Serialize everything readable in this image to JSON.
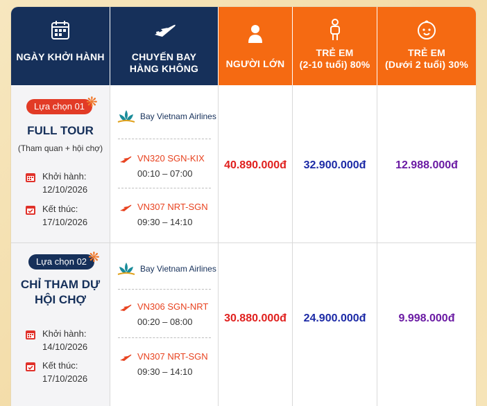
{
  "header": {
    "col_date": "NGÀY KHỞI HÀNH",
    "col_flight_1": "CHUYẾN BAY",
    "col_flight_2": "HÀNG KHÔNG",
    "col_adult": "NGƯỜI LỚN",
    "col_child_1": "TRẺ EM",
    "col_child_2": "(2-10 tuổi) 80%",
    "col_infant_1": "TRẺ EM",
    "col_infant_2": "(Dưới 2 tuổi) 30%"
  },
  "labels": {
    "depart": "Khởi hành:",
    "end": "Kết thúc:"
  },
  "options": [
    {
      "tag": "Lựa chọn 01",
      "title_1": "FULL TOUR",
      "title_2": "",
      "subtitle": "(Tham quan + hội chợ)",
      "depart_date": "12/10/2026",
      "end_date": "17/10/2026",
      "airline": "Bay Vietnam Airlines",
      "flight_out": "VN320 SGN-KIX",
      "time_out": "00:10 – 07:00",
      "flight_back": "VN307 NRT-SGN",
      "time_back": "09:30 – 14:10",
      "price_adult": "40.890.000đ",
      "price_child": "32.900.000đ",
      "price_infant": "12.988.000đ"
    },
    {
      "tag": "Lựa chọn 02",
      "title_1": "CHỈ THAM DỰ",
      "title_2": "HỘI CHỢ",
      "subtitle": "",
      "depart_date": "14/10/2026",
      "end_date": "17/10/2026",
      "airline": "Bay Vietnam Airlines",
      "flight_out": "VN306 SGN-NRT",
      "time_out": "00:20 – 08:00",
      "flight_back": "VN307 NRT-SGN",
      "time_back": "09:30 – 14:10",
      "price_adult": "30.880.000đ",
      "price_child": "24.900.000đ",
      "price_infant": "9.998.000đ"
    }
  ],
  "colors": {
    "navy": "#16305a",
    "orange": "#f56a12",
    "price_adult": "#e0201e",
    "price_child": "#1c2aa6",
    "price_infant": "#6a1aa3"
  },
  "icons": {
    "date": "calendar-icon",
    "flight": "airplane-icon",
    "adult": "adult-person-icon",
    "child": "child-icon",
    "infant": "baby-face-icon"
  }
}
